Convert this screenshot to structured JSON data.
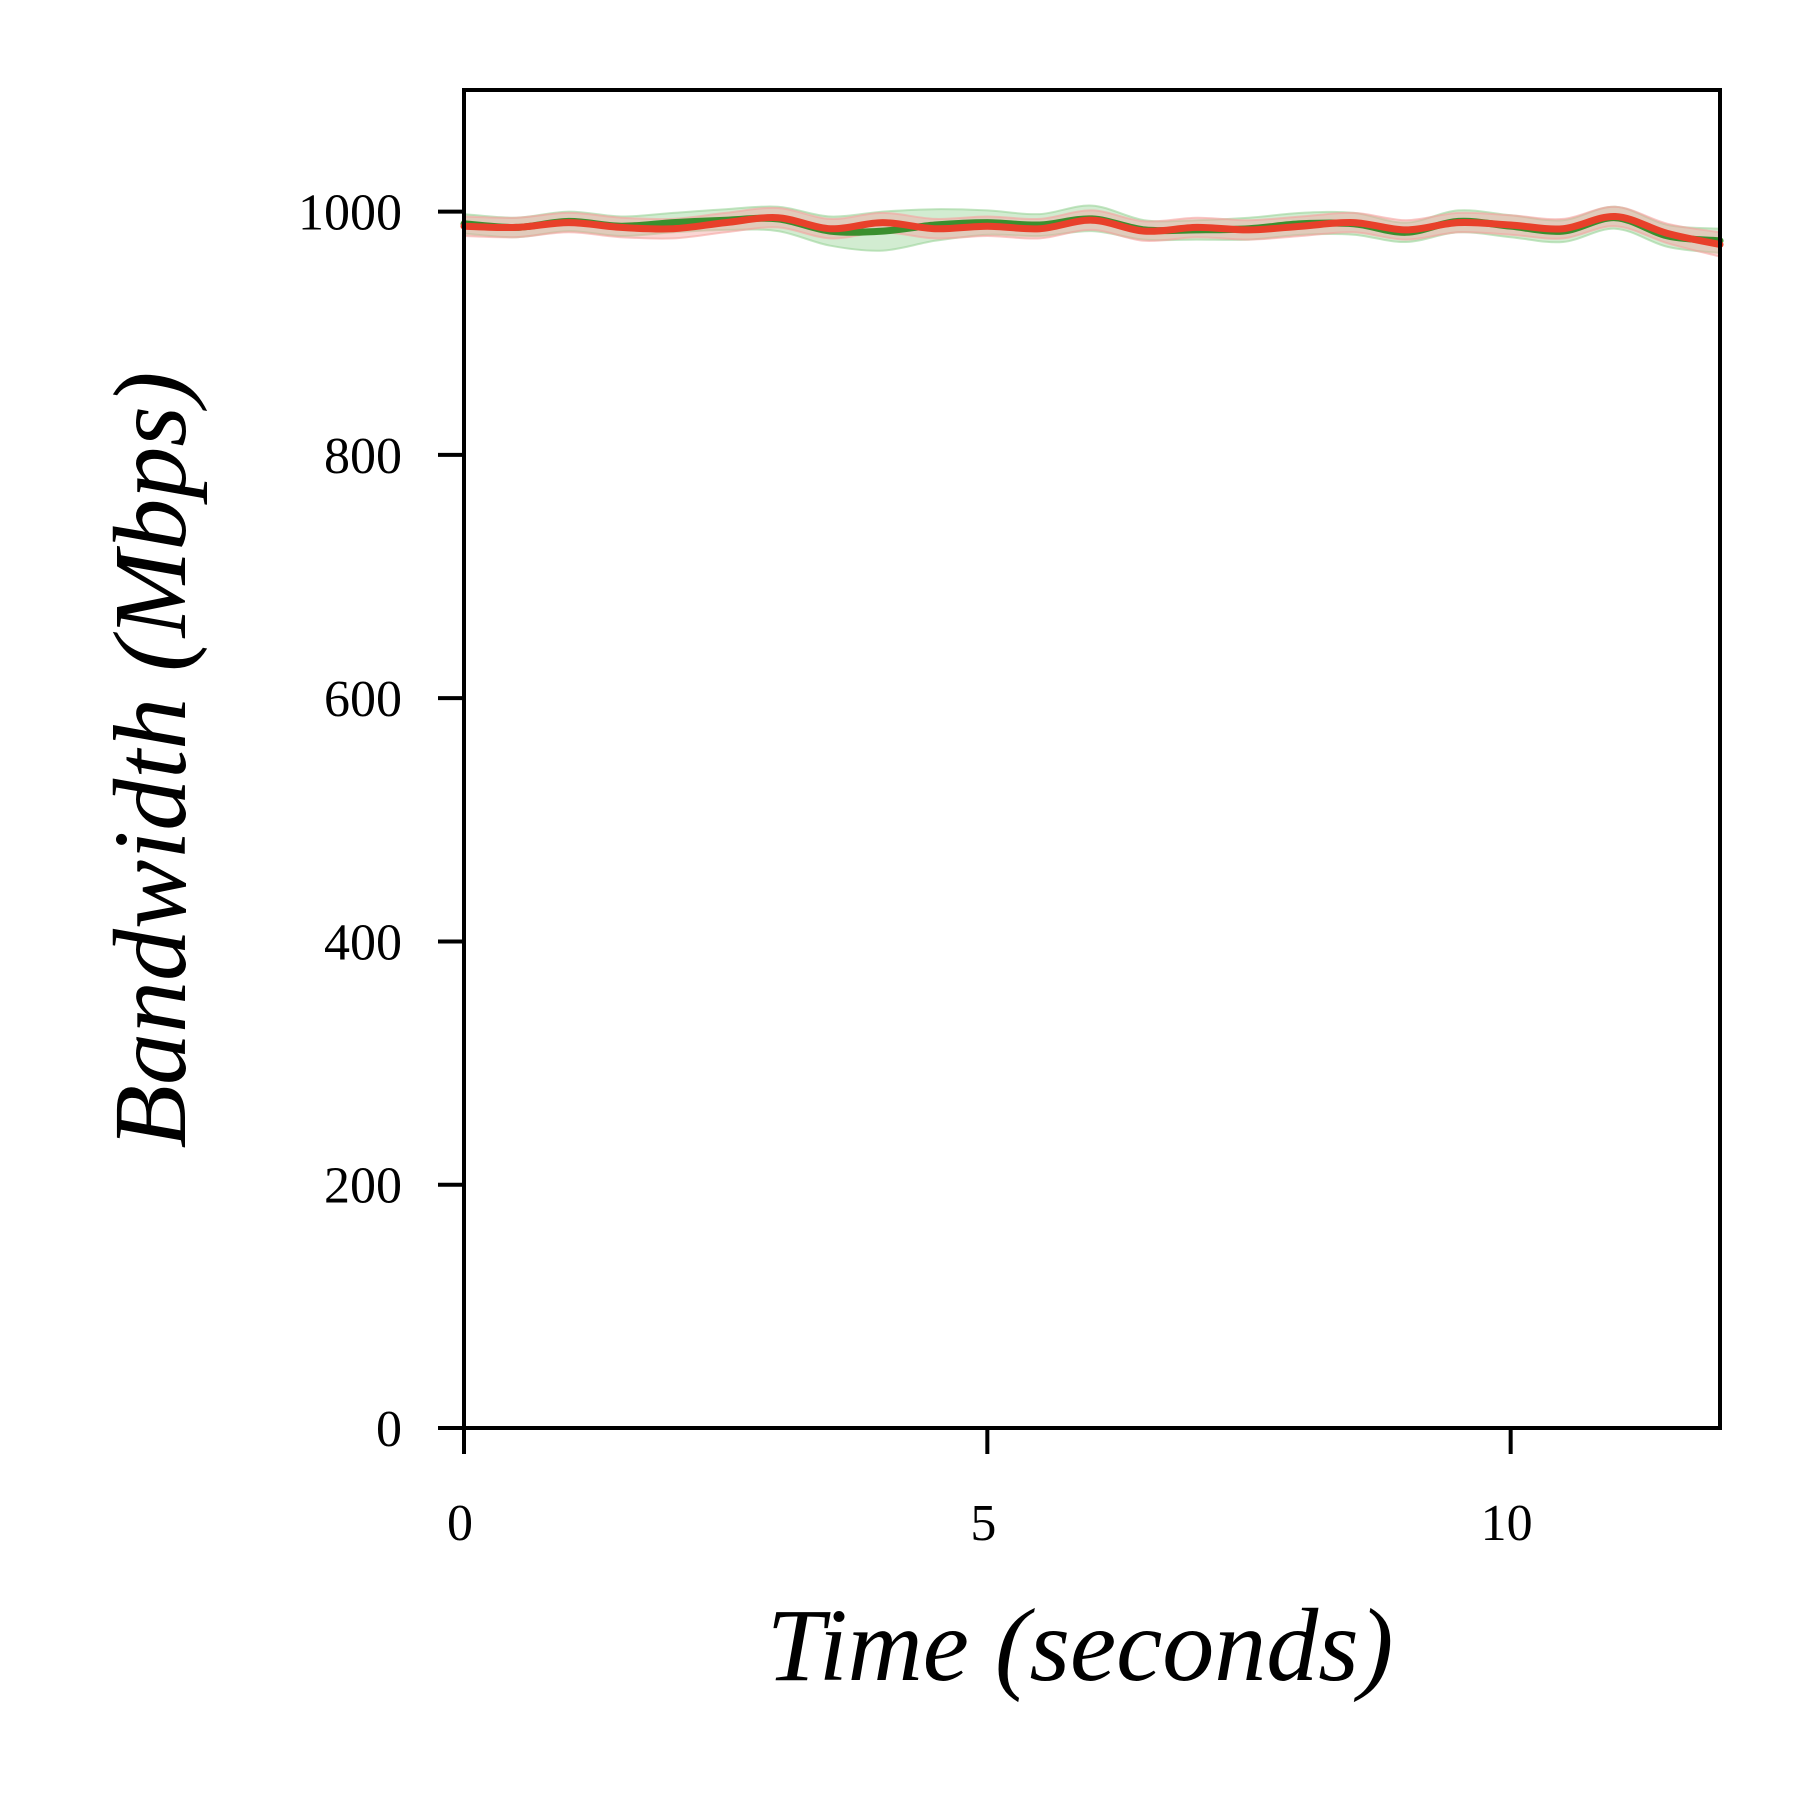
{
  "chart_data": {
    "type": "line",
    "title": "",
    "xlabel": "Time (seconds)",
    "ylabel": "Bandwidth (Mbps)",
    "xlim": [
      0,
      12
    ],
    "ylim": [
      0,
      1100
    ],
    "xticks": [
      0,
      5,
      10
    ],
    "yticks": [
      0,
      200,
      400,
      600,
      800,
      1000
    ],
    "xtick_labels": [
      "0",
      "5",
      "10"
    ],
    "ytick_labels": [
      "0",
      "200",
      "400",
      "600",
      "800",
      "1000"
    ],
    "grid": false,
    "legend": "none",
    "x": [
      0,
      0.5,
      1,
      1.5,
      2,
      2.5,
      3,
      3.5,
      4,
      4.5,
      5,
      5.5,
      6,
      6.5,
      7,
      7.5,
      8,
      8.5,
      9,
      9.5,
      10,
      10.5,
      11,
      11.5,
      12
    ],
    "series": [
      {
        "color": "#3a8f2e",
        "band_color": "#9bd49a",
        "values": [
          990,
          987,
          992,
          988,
          991,
          993,
          994,
          984,
          984,
          989,
          991,
          989,
          994,
          985,
          985,
          986,
          990,
          990,
          983,
          992,
          988,
          984,
          995,
          980,
          976
        ],
        "lower": [
          982,
          979,
          984,
          980,
          983,
          985,
          984,
          972,
          968,
          976,
          981,
          980,
          984,
          977,
          977,
          977,
          981,
          981,
          975,
          983,
          979,
          975,
          986,
          971,
          966
        ],
        "upper": [
          998,
          995,
          1000,
          996,
          999,
          1002,
          1004,
          996,
          1000,
          1002,
          1001,
          998,
          1005,
          993,
          993,
          995,
          999,
          999,
          991,
          1001,
          997,
          993,
          1004,
          989,
          986
        ]
      },
      {
        "color": "#e8402a",
        "band_color": "#f5a3a0",
        "values": [
          988,
          987,
          991,
          987,
          986,
          991,
          995,
          986,
          991,
          986,
          988,
          986,
          993,
          984,
          987,
          985,
          988,
          991,
          985,
          991,
          989,
          986,
          996,
          982,
          973
        ],
        "lower": [
          980,
          979,
          983,
          979,
          978,
          983,
          987,
          978,
          983,
          978,
          980,
          978,
          985,
          976,
          979,
          977,
          980,
          983,
          977,
          983,
          981,
          978,
          988,
          974,
          963
        ],
        "upper": [
          996,
          995,
          999,
          995,
          994,
          999,
          1003,
          994,
          999,
          994,
          996,
          994,
          1001,
          992,
          995,
          993,
          996,
          999,
          993,
          999,
          997,
          994,
          1004,
          990,
          983
        ]
      }
    ]
  }
}
